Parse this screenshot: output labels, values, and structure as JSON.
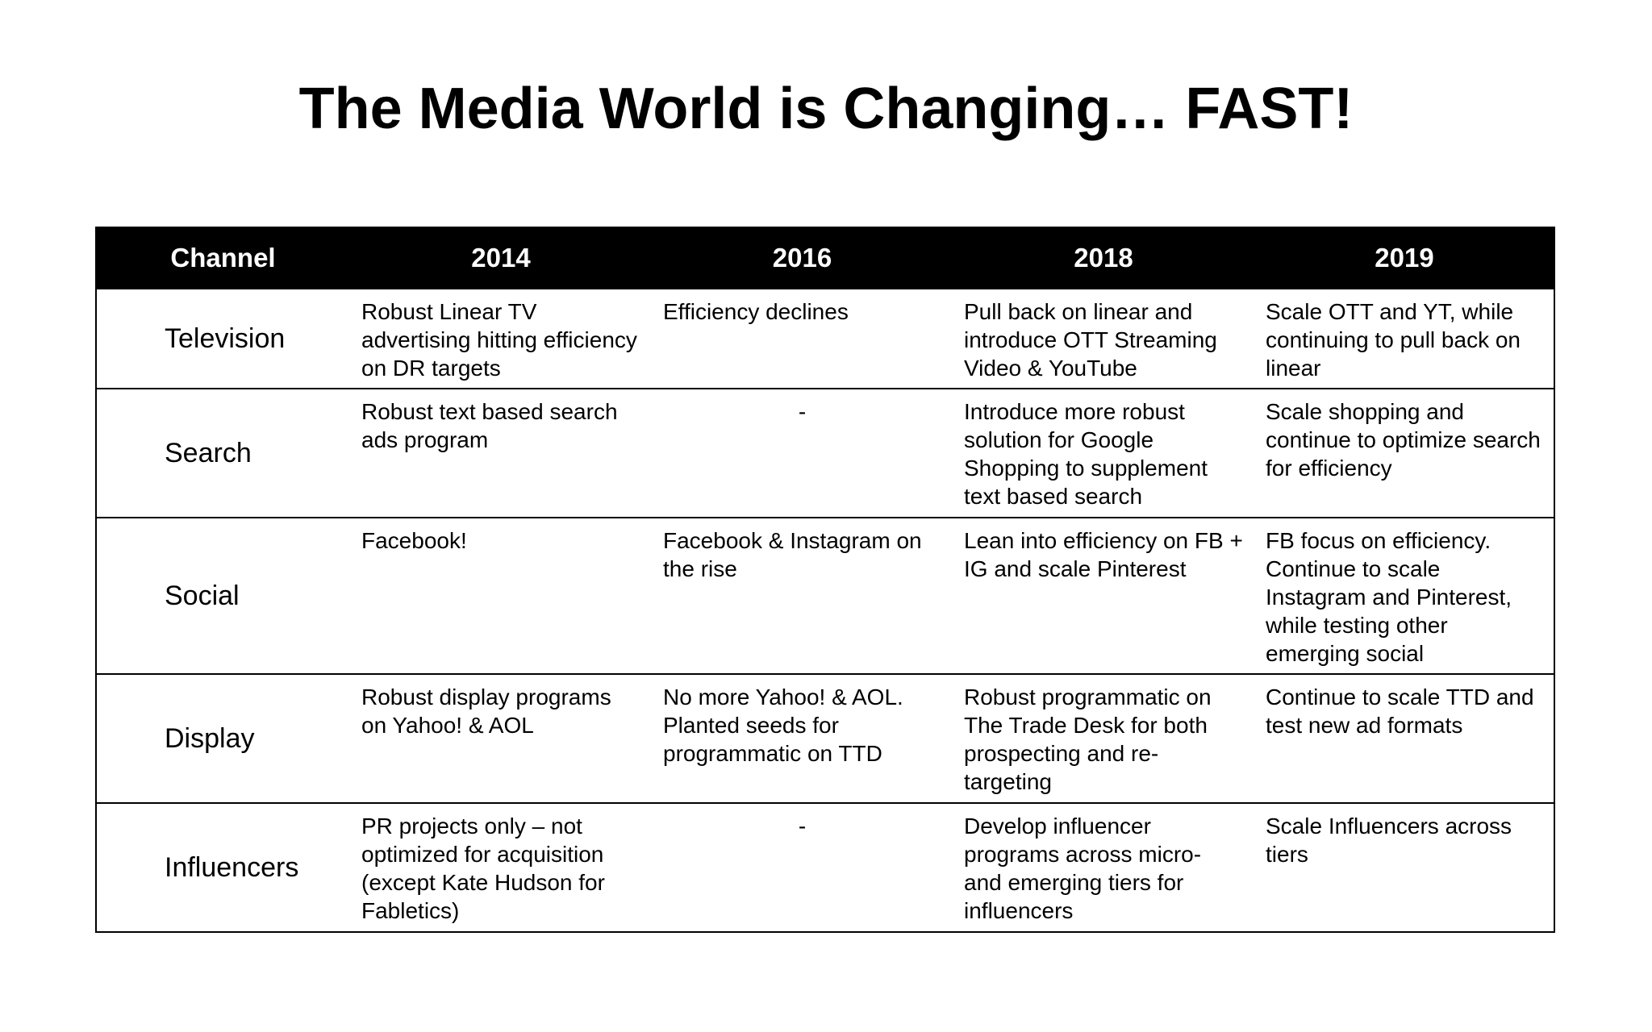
{
  "title": "The Media World is Changing… FAST!",
  "table": {
    "headers": [
      "Channel",
      "2014",
      "2016",
      "2018",
      "2019"
    ],
    "rows": [
      {
        "channel": "Television",
        "cells": [
          "Robust Linear TV advertising hitting efficiency on DR targets",
          "Efficiency declines",
          "Pull back on linear and introduce OTT Streaming Video & YouTube",
          "Scale OTT and YT, while continuing to pull back on linear"
        ]
      },
      {
        "channel": "Search",
        "cells": [
          "Robust text based search ads program",
          "-",
          "Introduce more robust solution for Google Shopping to supplement text based search",
          "Scale shopping and continue to optimize search for efficiency"
        ]
      },
      {
        "channel": "Social",
        "cells": [
          "Facebook!",
          "Facebook & Instagram on the rise",
          "Lean into efficiency on FB + IG and scale Pinterest",
          "FB focus on efficiency. Continue to scale Instagram and Pinterest, while testing other emerging social"
        ]
      },
      {
        "channel": "Display",
        "cells": [
          "Robust display programs on Yahoo! & AOL",
          "No more Yahoo! & AOL. Planted seeds for programmatic on TTD",
          "Robust programmatic on The Trade Desk for both prospecting and re-targeting",
          "Continue to scale TTD and test new ad formats"
        ]
      },
      {
        "channel": "Influencers",
        "cells": [
          "PR projects only – not optimized for acquisition (except Kate Hudson for Fabletics)",
          "-",
          "Develop influencer programs across micro- and emerging tiers for influencers",
          "Scale Influencers across tiers"
        ]
      }
    ]
  }
}
